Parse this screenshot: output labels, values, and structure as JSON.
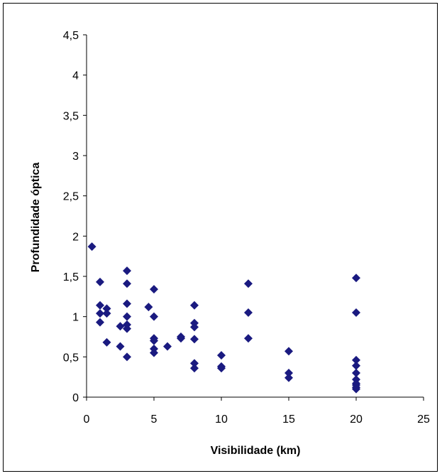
{
  "chart_data": {
    "type": "scatter",
    "xlabel": "Visibilidade (km)",
    "ylabel": "Profundidade óptica",
    "xlim": [
      0,
      25
    ],
    "ylim": [
      0,
      4.5
    ],
    "x_ticks": [
      "0",
      "5",
      "10",
      "15",
      "20",
      "25"
    ],
    "y_ticks": [
      "0",
      "0,5",
      "1",
      "1,5",
      "2",
      "2,5",
      "3",
      "3,5",
      "4",
      "4,5"
    ],
    "grid": false,
    "legend": "none",
    "marker": "diamond",
    "marker_color": "#1a1a80",
    "series": [
      {
        "points": [
          [
            0.4,
            1.87
          ],
          [
            1.0,
            1.43
          ],
          [
            1.0,
            1.14
          ],
          [
            1.0,
            1.04
          ],
          [
            1.0,
            0.93
          ],
          [
            1.5,
            1.1
          ],
          [
            1.5,
            1.04
          ],
          [
            1.5,
            0.68
          ],
          [
            2.5,
            0.88
          ],
          [
            2.5,
            0.63
          ],
          [
            3.0,
            1.57
          ],
          [
            3.0,
            1.41
          ],
          [
            3.0,
            1.16
          ],
          [
            3.0,
            1.0
          ],
          [
            3.0,
            0.9
          ],
          [
            3.0,
            0.85
          ],
          [
            3.0,
            0.5
          ],
          [
            4.6,
            1.12
          ],
          [
            5.0,
            1.34
          ],
          [
            5.0,
            1.0
          ],
          [
            5.0,
            0.73
          ],
          [
            5.0,
            0.7
          ],
          [
            5.0,
            0.6
          ],
          [
            5.0,
            0.55
          ],
          [
            6.0,
            0.63
          ],
          [
            7.0,
            0.75
          ],
          [
            7.0,
            0.73
          ],
          [
            8.0,
            1.14
          ],
          [
            8.0,
            0.92
          ],
          [
            8.0,
            0.87
          ],
          [
            8.0,
            0.72
          ],
          [
            8.0,
            0.42
          ],
          [
            8.0,
            0.36
          ],
          [
            10.0,
            0.52
          ],
          [
            10.0,
            0.38
          ],
          [
            10.0,
            0.36
          ],
          [
            12.0,
            1.41
          ],
          [
            12.0,
            1.05
          ],
          [
            12.0,
            0.73
          ],
          [
            15.0,
            0.57
          ],
          [
            15.0,
            0.3
          ],
          [
            15.0,
            0.24
          ],
          [
            20.0,
            1.48
          ],
          [
            20.0,
            1.05
          ],
          [
            20.0,
            0.46
          ],
          [
            20.0,
            0.39
          ],
          [
            20.0,
            0.3
          ],
          [
            20.0,
            0.22
          ],
          [
            20.0,
            0.17
          ],
          [
            20.0,
            0.15
          ],
          [
            20.0,
            0.12
          ],
          [
            20.0,
            0.1
          ]
        ]
      }
    ]
  }
}
